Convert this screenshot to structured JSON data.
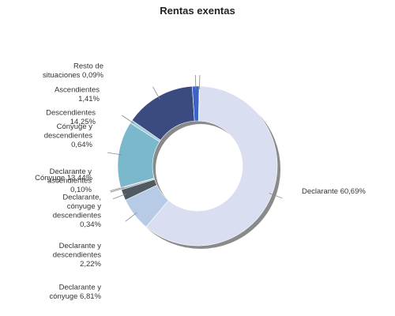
{
  "chart_data": {
    "type": "pie",
    "variant": "donut",
    "title": "Rentas exentas",
    "slices": [
      {
        "lines": [
          "Declarante 60,69%"
        ],
        "value": 60.69,
        "color": "#d9dff0"
      },
      {
        "lines": [
          "Declarante y",
          "cónyuge 6,81%"
        ],
        "value": 6.81,
        "color": "#b8cbe6"
      },
      {
        "lines": [
          "Declarante y",
          "descendientes",
          "2,22%"
        ],
        "value": 2.22,
        "color": "#4f5a63"
      },
      {
        "lines": [
          "Declarante,",
          "cónyuge y",
          "descendientes",
          "0,34%"
        ],
        "value": 0.34,
        "color": "#8fa3ad"
      },
      {
        "lines": [
          "Declarante y",
          "ascendientes",
          "0,10%"
        ],
        "value": 0.1,
        "color": "#7d8f9a"
      },
      {
        "lines": [
          "Cónyuge 13,44%"
        ],
        "value": 13.44,
        "color": "#7cb8cc"
      },
      {
        "lines": [
          "Cónyuge y",
          "descendientes",
          "0,64%"
        ],
        "value": 0.64,
        "color": "#9fcad8"
      },
      {
        "lines": [
          "Descendientes",
          "14,25%"
        ],
        "value": 14.25,
        "color": "#3b4a7f"
      },
      {
        "lines": [
          "Ascendientes",
          "1,41%"
        ],
        "value": 1.41,
        "color": "#3d63c8"
      },
      {
        "lines": [
          "Resto de",
          "situaciones 0,09%"
        ],
        "value": 0.09,
        "color": "#c4ccd8"
      }
    ]
  }
}
